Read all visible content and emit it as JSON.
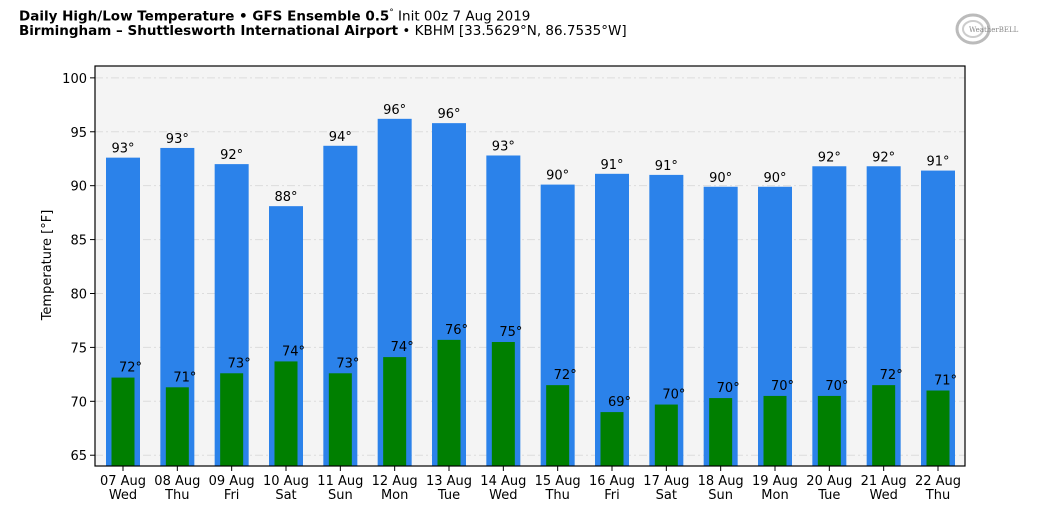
{
  "header": {
    "line1_bold": "Daily High/Low Temperature • GFS Ensemble 0.5",
    "line1_deg": "°",
    "line1_rest": " Init 00z 7 Aug 2019",
    "line2_bold": "Birmingham – Shuttlesworth International Airport",
    "line2_rest": " • KBHM [33.5629°N, 86.7535°W]",
    "logo_text": "WeatherBELL"
  },
  "colors": {
    "high_bar": "#2b82ea",
    "low_bar": "#007f00",
    "plot_bg": "#f4f4f4",
    "grid": "#dcdcdc"
  },
  "chart_data": {
    "type": "bar",
    "title": "Daily High/Low Temperature • GFS Ensemble 0.5° Init 00z 7 Aug 2019",
    "subtitle": "Birmingham – Shuttlesworth International Airport • KBHM [33.5629°N, 86.7535°W]",
    "xlabel": "",
    "ylabel": "Temperature [°F]",
    "ylim": [
      64,
      101.1
    ],
    "yticks": [
      65,
      70,
      75,
      80,
      85,
      90,
      95,
      100
    ],
    "grid": true,
    "categories": [
      [
        "07 Aug",
        "Wed"
      ],
      [
        "08 Aug",
        "Thu"
      ],
      [
        "09 Aug",
        "Fri"
      ],
      [
        "10 Aug",
        "Sat"
      ],
      [
        "11 Aug",
        "Sun"
      ],
      [
        "12 Aug",
        "Mon"
      ],
      [
        "13 Aug",
        "Tue"
      ],
      [
        "14 Aug",
        "Wed"
      ],
      [
        "15 Aug",
        "Thu"
      ],
      [
        "16 Aug",
        "Fri"
      ],
      [
        "17 Aug",
        "Sat"
      ],
      [
        "18 Aug",
        "Sun"
      ],
      [
        "19 Aug",
        "Mon"
      ],
      [
        "20 Aug",
        "Tue"
      ],
      [
        "21 Aug",
        "Wed"
      ],
      [
        "22 Aug",
        "Thu"
      ]
    ],
    "series": [
      {
        "name": "High",
        "values": [
          92.6,
          93.5,
          92.0,
          88.1,
          93.7,
          96.2,
          95.8,
          92.8,
          90.1,
          91.1,
          91.0,
          89.9,
          89.9,
          91.8,
          91.8,
          91.4
        ],
        "labels": [
          "93°",
          "93°",
          "92°",
          "88°",
          "94°",
          "96°",
          "96°",
          "93°",
          "90°",
          "91°",
          "91°",
          "90°",
          "90°",
          "92°",
          "92°",
          "91°"
        ]
      },
      {
        "name": "Low",
        "values": [
          72.2,
          71.3,
          72.6,
          73.7,
          72.6,
          74.1,
          75.7,
          75.5,
          71.5,
          69.0,
          69.7,
          70.3,
          70.5,
          70.5,
          71.5,
          71.0
        ],
        "labels": [
          "72°",
          "71°",
          "73°",
          "74°",
          "73°",
          "74°",
          "76°",
          "75°",
          "72°",
          "69°",
          "70°",
          "70°",
          "70°",
          "70°",
          "72°",
          "71°"
        ]
      }
    ]
  }
}
